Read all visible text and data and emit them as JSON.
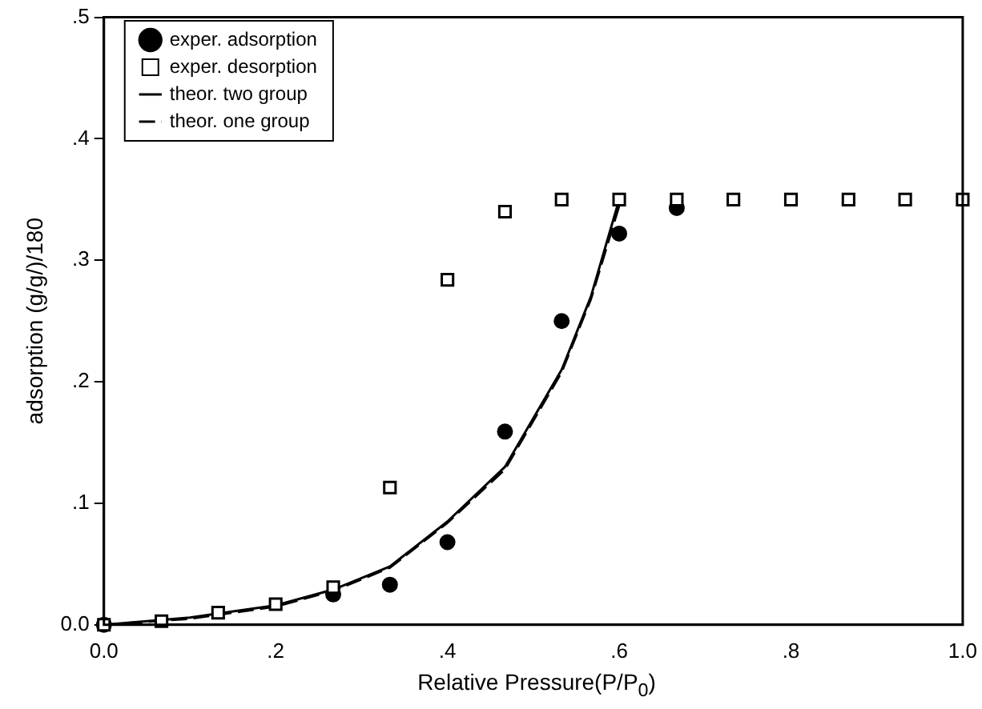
{
  "chart_data": {
    "type": "scatter",
    "xlabel": "Relative Pressure(P/P$_{0}$)",
    "ylabel": "adsorption (g/g/)/180",
    "xlim": [
      0,
      1
    ],
    "ylim": [
      0,
      0.5
    ],
    "xticks": [
      {
        "value": 0,
        "label": "0.0"
      },
      {
        "value": 0.2,
        "label": ".2"
      },
      {
        "value": 0.4,
        "label": ".4"
      },
      {
        "value": 0.6,
        "label": ".6"
      },
      {
        "value": 0.8,
        "label": ".8"
      },
      {
        "value": 1,
        "label": "1.0"
      }
    ],
    "yticks": [
      {
        "value": 0,
        "label": "0.0"
      },
      {
        "value": 0.1,
        "label": ".1"
      },
      {
        "value": 0.2,
        "label": ".2"
      },
      {
        "value": 0.3,
        "label": ".3"
      },
      {
        "value": 0.4,
        "label": ".4"
      },
      {
        "value": 0.5,
        "label": ".5"
      }
    ],
    "grid": false,
    "legend": "top left",
    "series": [
      {
        "name": "exper. adsorption",
        "type": "scatter",
        "marker": "circle",
        "color": "#000000",
        "x": [
          0,
          0.067,
          0.133,
          0.2,
          0.267,
          0.333,
          0.4,
          0.467,
          0.533,
          0.6,
          0.667
        ],
        "values": [
          0,
          null,
          null,
          null,
          0.025,
          0.033,
          0.068,
          0.159,
          0.25,
          0.322,
          0.343
        ]
      },
      {
        "name": "exper. desorption",
        "type": "scatter",
        "marker": "square",
        "color": "#000000",
        "x": [
          0,
          0.067,
          0.133,
          0.2,
          0.267,
          0.333,
          0.4,
          0.467,
          0.533,
          0.6,
          0.667,
          0.733,
          0.8,
          0.867,
          0.933,
          1.0
        ],
        "values": [
          0,
          0.003,
          0.01,
          0.017,
          0.031,
          0.113,
          0.284,
          0.34,
          0.35,
          0.35,
          0.35,
          0.35,
          0.35,
          0.35,
          0.35,
          0.35
        ]
      },
      {
        "name": "theor. two group",
        "type": "line",
        "marker": "none",
        "line_style": "solid",
        "color": "#000000",
        "x": [
          0,
          0.1,
          0.2,
          0.267,
          0.333,
          0.4,
          0.467,
          0.533,
          0.567,
          0.6
        ],
        "values": [
          0,
          0.006,
          0.016,
          0.029,
          0.048,
          0.085,
          0.13,
          0.21,
          0.27,
          0.35
        ]
      },
      {
        "name": "theor. one group",
        "type": "line",
        "marker": "none",
        "line_style": "dashed",
        "color": "#000000",
        "x": [
          0,
          0.1,
          0.2,
          0.267,
          0.333,
          0.4,
          0.467,
          0.533,
          0.567,
          0.6
        ],
        "values": [
          0,
          0.005,
          0.015,
          0.028,
          0.047,
          0.084,
          0.128,
          0.208,
          0.268,
          0.345
        ]
      }
    ]
  }
}
